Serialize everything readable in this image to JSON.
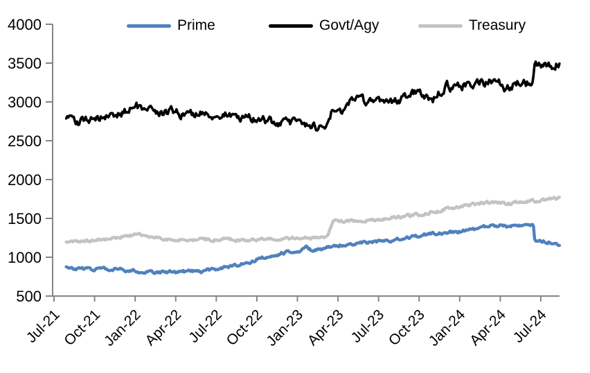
{
  "chart_data": {
    "type": "line",
    "title": "",
    "xlabel": "",
    "ylabel": "",
    "legend_position": "top",
    "grid": false,
    "axis_color": "#848484",
    "x_axis": {
      "unit": "months-since-Jul-2021",
      "tick_positions": [
        0,
        3,
        6,
        9,
        12,
        15,
        18,
        21,
        24,
        27,
        30,
        33,
        36
      ],
      "tick_labels": [
        "Jul-21",
        "Oct-21",
        "Jan-22",
        "Apr-22",
        "Jul-22",
        "Oct-22",
        "Jan-23",
        "Apr-23",
        "Jul-23",
        "Oct-23",
        "Jan-24",
        "Apr-24",
        "Jul-24"
      ],
      "label_rotation_deg": -45
    },
    "y_axis": {
      "min": 500,
      "max": 4000,
      "tick_step": 500,
      "tick_labels": [
        "500",
        "1000",
        "1500",
        "2000",
        "2500",
        "3000",
        "3500",
        "4000"
      ]
    },
    "series": [
      {
        "name": "Prime",
        "color": "#4F81BD",
        "style": {
          "stroke_width": 4.4,
          "jitter": 4
        },
        "anchors": [
          [
            0.9,
            885
          ],
          [
            1.1,
            858
          ],
          [
            1.8,
            852
          ],
          [
            2.5,
            848
          ],
          [
            3.2,
            852
          ],
          [
            4,
            846
          ],
          [
            4.8,
            840
          ],
          [
            5.5,
            832
          ],
          [
            6.2,
            816
          ],
          [
            7,
            812
          ],
          [
            7.8,
            808
          ],
          [
            8.5,
            813
          ],
          [
            9.2,
            810
          ],
          [
            10,
            816
          ],
          [
            10.8,
            813
          ],
          [
            11.5,
            836
          ],
          [
            12.2,
            856
          ],
          [
            13,
            876
          ],
          [
            13.8,
            912
          ],
          [
            14.5,
            942
          ],
          [
            15.2,
            982
          ],
          [
            16,
            1016
          ],
          [
            16.8,
            1052
          ],
          [
            17.5,
            1076
          ],
          [
            18.3,
            1086
          ],
          [
            18.65,
            1122
          ],
          [
            19.05,
            1092
          ],
          [
            19.8,
            1102
          ],
          [
            20.5,
            1132
          ],
          [
            21,
            1152
          ],
          [
            21.8,
            1166
          ],
          [
            22.5,
            1178
          ],
          [
            23.2,
            1190
          ],
          [
            23.9,
            1200
          ],
          [
            24.4,
            1194
          ],
          [
            25.2,
            1230
          ],
          [
            26,
            1246
          ],
          [
            26.8,
            1270
          ],
          [
            27.5,
            1290
          ],
          [
            28.2,
            1302
          ],
          [
            29,
            1312
          ],
          [
            29.8,
            1322
          ],
          [
            30.3,
            1342
          ],
          [
            31,
            1362
          ],
          [
            31.8,
            1386
          ],
          [
            32.5,
            1406
          ],
          [
            33.1,
            1420
          ],
          [
            33.5,
            1396
          ],
          [
            34,
            1412
          ],
          [
            34.5,
            1402
          ],
          [
            35,
            1416
          ],
          [
            35.45,
            1406
          ],
          [
            35.55,
            1190
          ],
          [
            36.1,
            1196
          ],
          [
            36.5,
            1202
          ],
          [
            36.8,
            1186
          ],
          [
            37.2,
            1180
          ],
          [
            37.4,
            1166
          ]
        ]
      },
      {
        "name": "Govt/Agy",
        "color": "#000000",
        "style": {
          "stroke_width": 3.6,
          "jitter": 11
        },
        "anchors": [
          [
            0.9,
            2755
          ],
          [
            1.4,
            2780
          ],
          [
            1.9,
            2745
          ],
          [
            2.4,
            2775
          ],
          [
            3.2,
            2790
          ],
          [
            4,
            2815
          ],
          [
            5,
            2860
          ],
          [
            5.9,
            2935
          ],
          [
            6.1,
            2945
          ],
          [
            6.4,
            2880
          ],
          [
            6.9,
            2860
          ],
          [
            7.4,
            2900
          ],
          [
            7.9,
            2865
          ],
          [
            8.6,
            2885
          ],
          [
            9.1,
            2870
          ],
          [
            9.35,
            2800
          ],
          [
            9.7,
            2860
          ],
          [
            10.5,
            2850
          ],
          [
            11.2,
            2835
          ],
          [
            12,
            2820
          ],
          [
            12.7,
            2830
          ],
          [
            13.4,
            2780
          ],
          [
            14.2,
            2805
          ],
          [
            15,
            2775
          ],
          [
            16,
            2750
          ],
          [
            17,
            2730
          ],
          [
            17.9,
            2740
          ],
          [
            18.7,
            2700
          ],
          [
            19.4,
            2665
          ],
          [
            19.75,
            2645
          ],
          [
            20.1,
            2705
          ],
          [
            20.5,
            2855
          ],
          [
            21,
            2875
          ],
          [
            21.5,
            2855
          ],
          [
            21.9,
            3000
          ],
          [
            22.4,
            3035
          ],
          [
            22.9,
            3005
          ],
          [
            23.4,
            3035
          ],
          [
            23.9,
            3025
          ],
          [
            24.25,
            2965
          ],
          [
            24.7,
            3000
          ],
          [
            25.5,
            3035
          ],
          [
            26.3,
            3075
          ],
          [
            27,
            3135
          ],
          [
            27.4,
            3100
          ],
          [
            28,
            3035
          ],
          [
            28.6,
            3135
          ],
          [
            29,
            3225
          ],
          [
            29.4,
            3185
          ],
          [
            29.8,
            3245
          ],
          [
            30.2,
            3195
          ],
          [
            30.6,
            3255
          ],
          [
            31,
            3205
          ],
          [
            31.5,
            3245
          ],
          [
            32,
            3235
          ],
          [
            32.5,
            3285
          ],
          [
            32.9,
            3305
          ],
          [
            33.25,
            3185
          ],
          [
            33.8,
            3205
          ],
          [
            34.3,
            3235
          ],
          [
            35,
            3240
          ],
          [
            35.4,
            3265
          ],
          [
            35.55,
            3465
          ],
          [
            36,
            3450
          ],
          [
            36.3,
            3478
          ],
          [
            36.7,
            3462
          ],
          [
            37.1,
            3492
          ],
          [
            37.4,
            3520
          ]
        ]
      },
      {
        "name": "Treasury",
        "color": "#C3C3C3",
        "style": {
          "stroke_width": 4.4,
          "jitter": 4
        },
        "anchors": [
          [
            0.9,
            1205
          ],
          [
            1.5,
            1212
          ],
          [
            2.2,
            1208
          ],
          [
            3,
            1215
          ],
          [
            3.8,
            1226
          ],
          [
            4.5,
            1242
          ],
          [
            5.2,
            1266
          ],
          [
            5.9,
            1282
          ],
          [
            6.1,
            1296
          ],
          [
            6.5,
            1276
          ],
          [
            7,
            1260
          ],
          [
            7.8,
            1242
          ],
          [
            8.5,
            1236
          ],
          [
            9.2,
            1226
          ],
          [
            10,
            1220
          ],
          [
            10.8,
            1230
          ],
          [
            11.5,
            1226
          ],
          [
            12.2,
            1228
          ],
          [
            13,
            1232
          ],
          [
            13.8,
            1226
          ],
          [
            14.5,
            1231
          ],
          [
            15.2,
            1228
          ],
          [
            16,
            1233
          ],
          [
            17,
            1240
          ],
          [
            18,
            1250
          ],
          [
            18.7,
            1246
          ],
          [
            19.4,
            1256
          ],
          [
            20,
            1270
          ],
          [
            20.25,
            1312
          ],
          [
            20.65,
            1452
          ],
          [
            21.2,
            1466
          ],
          [
            21.7,
            1458
          ],
          [
            22.3,
            1470
          ],
          [
            23,
            1466
          ],
          [
            23.8,
            1480
          ],
          [
            24.5,
            1496
          ],
          [
            25.2,
            1510
          ],
          [
            26,
            1530
          ],
          [
            26.8,
            1546
          ],
          [
            27.5,
            1566
          ],
          [
            28.3,
            1592
          ],
          [
            29,
            1622
          ],
          [
            29.8,
            1652
          ],
          [
            30.5,
            1666
          ],
          [
            31.2,
            1682
          ],
          [
            32,
            1702
          ],
          [
            32.7,
            1716
          ],
          [
            33.15,
            1700
          ],
          [
            33.5,
            1682
          ],
          [
            34.2,
            1712
          ],
          [
            35,
            1722
          ],
          [
            35.8,
            1732
          ],
          [
            36.5,
            1746
          ],
          [
            37,
            1756
          ],
          [
            37.4,
            1766
          ]
        ]
      }
    ]
  }
}
